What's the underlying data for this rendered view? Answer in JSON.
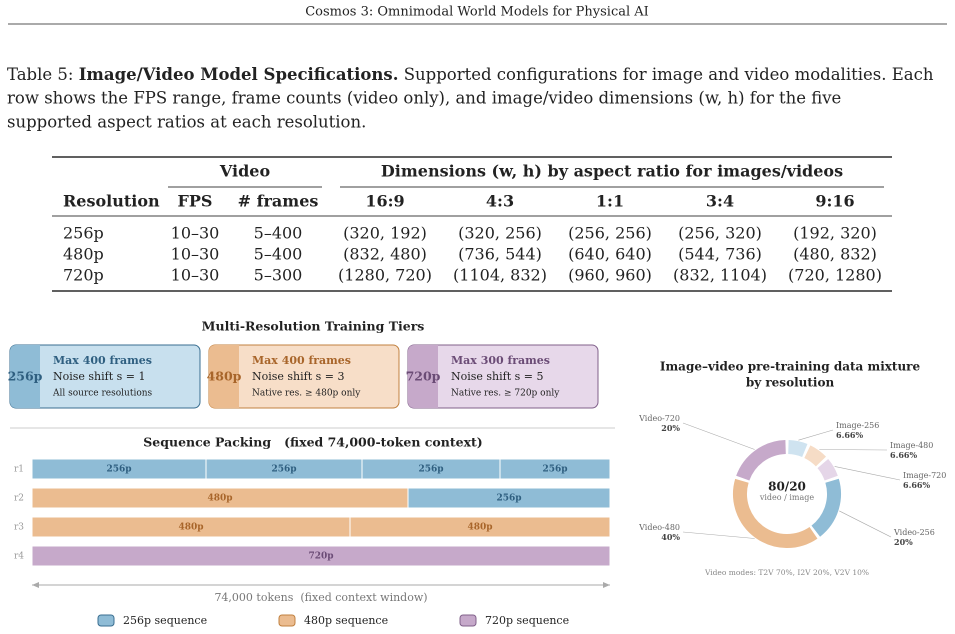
{
  "header": {
    "running_title": "Cosmos 3: Omnimodal World Models for Physical AI"
  },
  "caption": {
    "label": "Table 5:",
    "bold": "Image/Video Model Specifications.",
    "lines": [
      "Supported configurations for image and video modalities. Each",
      "row shows the FPS range, frame counts (video only), and image/video dimensions (w, h) for the five",
      "supported aspect ratios at each resolution."
    ]
  },
  "table": {
    "group_headers": [
      "Video",
      "Dimensions (w, h) by aspect ratio for images/videos"
    ],
    "columns": [
      "Resolution",
      "FPS",
      "# frames",
      "16:9",
      "4:3",
      "1:1",
      "3:4",
      "9:16"
    ],
    "rows": [
      [
        "256p",
        "10–30",
        "5–400",
        "(320, 192)",
        "(320, 256)",
        "(256, 256)",
        "(256, 320)",
        "(192, 320)"
      ],
      [
        "480p",
        "10–30",
        "5–400",
        "(832, 480)",
        "(736, 544)",
        "(640, 640)",
        "(544, 736)",
        "(480, 832)"
      ],
      [
        "720p",
        "10–30",
        "5–300",
        "(1280, 720)",
        "(1104, 832)",
        "(960, 960)",
        "(832, 1104)",
        "(720, 1280)"
      ]
    ]
  },
  "tiers": {
    "title": "Multi-Resolution Training Tiers",
    "items": [
      {
        "badge": "256p",
        "frames": "Max 400 frames",
        "shift": "Noise shift s = 1",
        "note": "All source resolutions"
      },
      {
        "badge": "480p",
        "frames": "Max 400 frames",
        "shift": "Noise shift s = 3",
        "note": "Native res. ≥ 480p only"
      },
      {
        "badge": "720p",
        "frames": "Max 300 frames",
        "shift": "Noise shift s = 5",
        "note": "Native res. ≥ 720p only"
      }
    ]
  },
  "packing": {
    "title": "Sequence Packing   (fixed 74,000-token context)",
    "rows": [
      {
        "label": "r1",
        "segments": [
          "256p",
          "256p",
          "256p",
          "256p"
        ]
      },
      {
        "label": "r2",
        "segments": [
          "480p",
          "256p"
        ]
      },
      {
        "label": "r3",
        "segments": [
          "480p",
          "480p"
        ]
      },
      {
        "label": "r4",
        "segments": [
          "720p"
        ]
      }
    ],
    "axis_label": "74,000 tokens  (fixed context window)",
    "legend": [
      "256p sequence",
      "480p sequence",
      "720p sequence"
    ]
  },
  "donut": {
    "title": [
      "Image–video pre-training data mixture",
      "by resolution"
    ],
    "center": "80/20",
    "center_sub": "video / image",
    "segments": [
      {
        "name": "Image-256",
        "value": 6.66,
        "label": "6.66%"
      },
      {
        "name": "Image-480",
        "value": 6.66,
        "label": "6.66%"
      },
      {
        "name": "Image-720",
        "value": 6.66,
        "label": "6.66%"
      },
      {
        "name": "Video-256",
        "value": 20,
        "label": "20%"
      },
      {
        "name": "Video-480",
        "value": 40,
        "label": "40%"
      },
      {
        "name": "Video-720",
        "value": 20,
        "label": "20%"
      }
    ],
    "footnote": "Video modes: T2V 70%, I2V 20%, V2V 10%"
  }
}
